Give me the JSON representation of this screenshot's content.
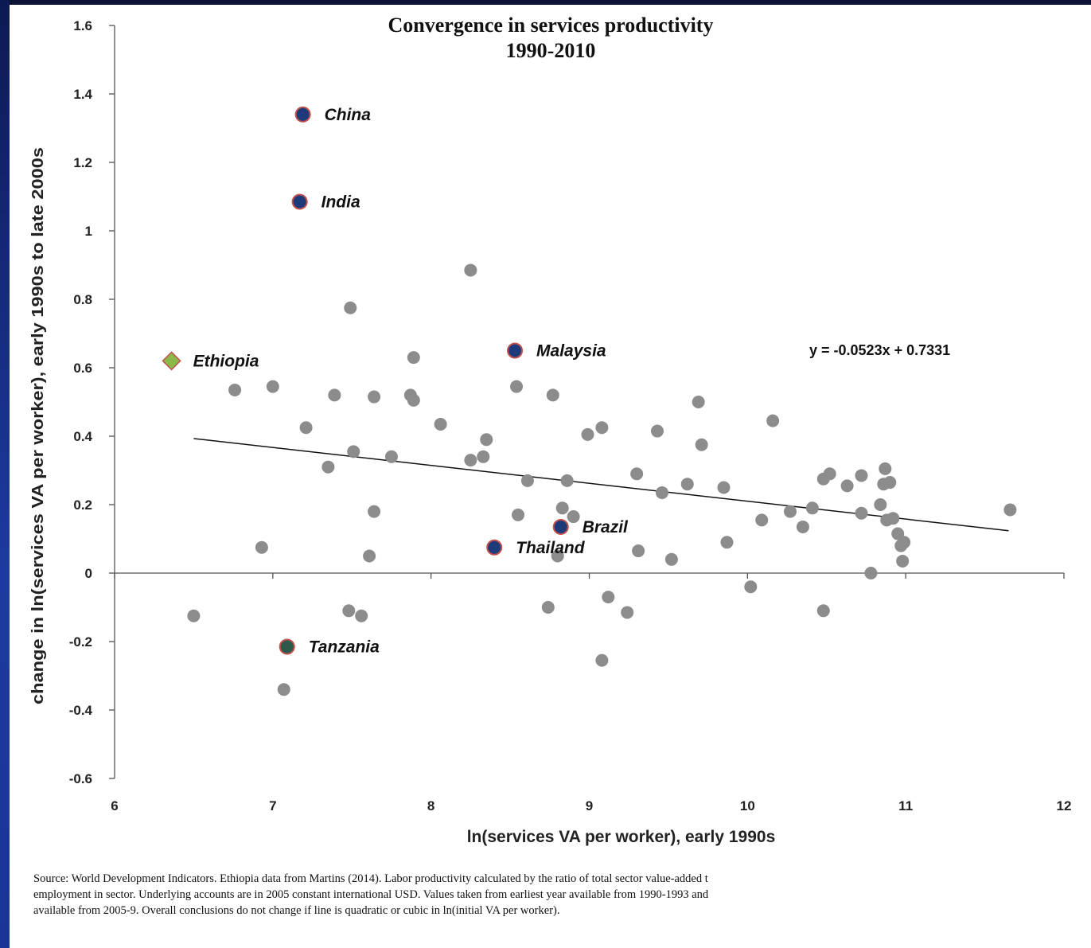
{
  "chart_data": {
    "type": "scatter",
    "title": "Convergence in services productivity",
    "subtitle": "1990-2010",
    "xlabel": "ln(services VA per worker), early 1990s",
    "ylabel": "change in ln(services VA per worker), early 1990s to late 2000s",
    "xlim": [
      6,
      12
    ],
    "ylim": [
      -0.6,
      1.6
    ],
    "x_ticks": [
      "6",
      "7",
      "8",
      "9",
      "10",
      "11",
      "12"
    ],
    "y_ticks": [
      "1.6",
      "1.4",
      "1.2",
      "1",
      "0.8",
      "0.6",
      "0.4",
      "0.2",
      "0",
      "-0.2",
      "-0.4",
      "-0.6"
    ],
    "grid": false,
    "trendline": {
      "equation": "y = -0.0523x + 0.7331",
      "slope": -0.0523,
      "intercept": 0.7331,
      "x_range": [
        6.5,
        11.65
      ]
    },
    "highlighted": [
      {
        "label": "China",
        "x": 7.19,
        "y": 1.34,
        "color": "#1f3a7a",
        "marker": "circle"
      },
      {
        "label": "India",
        "x": 7.17,
        "y": 1.085,
        "color": "#1f3a7a",
        "marker": "circle"
      },
      {
        "label": "Malaysia",
        "x": 8.53,
        "y": 0.65,
        "color": "#1f3a7a",
        "marker": "circle"
      },
      {
        "label": "Ethiopia",
        "x": 6.36,
        "y": 0.62,
        "color": "#8cb84a",
        "marker": "diamond"
      },
      {
        "label": "Brazil",
        "x": 8.82,
        "y": 0.135,
        "color": "#1f3a7a",
        "marker": "circle"
      },
      {
        "label": "Thailand",
        "x": 8.4,
        "y": 0.075,
        "color": "#1f3a7a",
        "marker": "circle"
      },
      {
        "label": "Tanzania",
        "x": 7.09,
        "y": -0.215,
        "color": "#2c5a4a",
        "marker": "circle"
      }
    ],
    "points": [
      {
        "x": 6.5,
        "y": -0.125
      },
      {
        "x": 6.76,
        "y": 0.535
      },
      {
        "x": 6.93,
        "y": 0.075
      },
      {
        "x": 7.0,
        "y": 0.545
      },
      {
        "x": 7.07,
        "y": -0.34
      },
      {
        "x": 7.21,
        "y": 0.425
      },
      {
        "x": 7.35,
        "y": 0.31
      },
      {
        "x": 7.39,
        "y": 0.52
      },
      {
        "x": 7.48,
        "y": -0.11
      },
      {
        "x": 7.49,
        "y": 0.775
      },
      {
        "x": 7.51,
        "y": 0.355
      },
      {
        "x": 7.56,
        "y": -0.125
      },
      {
        "x": 7.61,
        "y": 0.05
      },
      {
        "x": 7.64,
        "y": 0.515
      },
      {
        "x": 7.64,
        "y": 0.18
      },
      {
        "x": 7.75,
        "y": 0.34
      },
      {
        "x": 7.87,
        "y": 0.52
      },
      {
        "x": 7.89,
        "y": 0.505
      },
      {
        "x": 7.89,
        "y": 0.63
      },
      {
        "x": 8.06,
        "y": 0.435
      },
      {
        "x": 8.25,
        "y": 0.885
      },
      {
        "x": 8.25,
        "y": 0.33
      },
      {
        "x": 8.33,
        "y": 0.34
      },
      {
        "x": 8.35,
        "y": 0.39
      },
      {
        "x": 8.54,
        "y": 0.545
      },
      {
        "x": 8.55,
        "y": 0.17
      },
      {
        "x": 8.61,
        "y": 0.27
      },
      {
        "x": 8.74,
        "y": -0.1
      },
      {
        "x": 8.77,
        "y": 0.52
      },
      {
        "x": 8.8,
        "y": 0.05
      },
      {
        "x": 8.83,
        "y": 0.19
      },
      {
        "x": 8.86,
        "y": 0.27
      },
      {
        "x": 8.9,
        "y": 0.165
      },
      {
        "x": 8.99,
        "y": 0.405
      },
      {
        "x": 9.08,
        "y": 0.425
      },
      {
        "x": 9.08,
        "y": -0.255
      },
      {
        "x": 9.12,
        "y": -0.07
      },
      {
        "x": 9.24,
        "y": -0.115
      },
      {
        "x": 9.3,
        "y": 0.29
      },
      {
        "x": 9.31,
        "y": 0.065
      },
      {
        "x": 9.43,
        "y": 0.415
      },
      {
        "x": 9.46,
        "y": 0.235
      },
      {
        "x": 9.52,
        "y": 0.04
      },
      {
        "x": 9.62,
        "y": 0.26
      },
      {
        "x": 9.69,
        "y": 0.5
      },
      {
        "x": 9.71,
        "y": 0.375
      },
      {
        "x": 9.85,
        "y": 0.25
      },
      {
        "x": 9.87,
        "y": 0.09
      },
      {
        "x": 10.02,
        "y": -0.04
      },
      {
        "x": 10.09,
        "y": 0.155
      },
      {
        "x": 10.16,
        "y": 0.445
      },
      {
        "x": 10.27,
        "y": 0.18
      },
      {
        "x": 10.35,
        "y": 0.135
      },
      {
        "x": 10.41,
        "y": 0.19
      },
      {
        "x": 10.48,
        "y": 0.275
      },
      {
        "x": 10.48,
        "y": -0.11
      },
      {
        "x": 10.52,
        "y": 0.29
      },
      {
        "x": 10.63,
        "y": 0.255
      },
      {
        "x": 10.72,
        "y": 0.285
      },
      {
        "x": 10.72,
        "y": 0.175
      },
      {
        "x": 10.78,
        "y": 0.0
      },
      {
        "x": 10.84,
        "y": 0.2
      },
      {
        "x": 10.86,
        "y": 0.26
      },
      {
        "x": 10.87,
        "y": 0.305
      },
      {
        "x": 10.88,
        "y": 0.155
      },
      {
        "x": 10.9,
        "y": 0.265
      },
      {
        "x": 10.92,
        "y": 0.16
      },
      {
        "x": 10.95,
        "y": 0.115
      },
      {
        "x": 10.97,
        "y": 0.08
      },
      {
        "x": 10.98,
        "y": 0.035
      },
      {
        "x": 10.99,
        "y": 0.09
      },
      {
        "x": 11.66,
        "y": 0.185
      }
    ],
    "point_color": "#8c8c8c"
  },
  "footer": {
    "source_text": "Source: World Development Indicators. Ethiopia data from Martins (2014). Labor productivity calculated by the ratio of total sector value-added t\nemployment in sector. Underlying accounts are in 2005 constant international USD. Values taken from earliest year available from 1990-1993 and\navailable from 2005-9. Overall conclusions do not change if line is quadratic or cubic in ln(initial VA per worker)."
  }
}
